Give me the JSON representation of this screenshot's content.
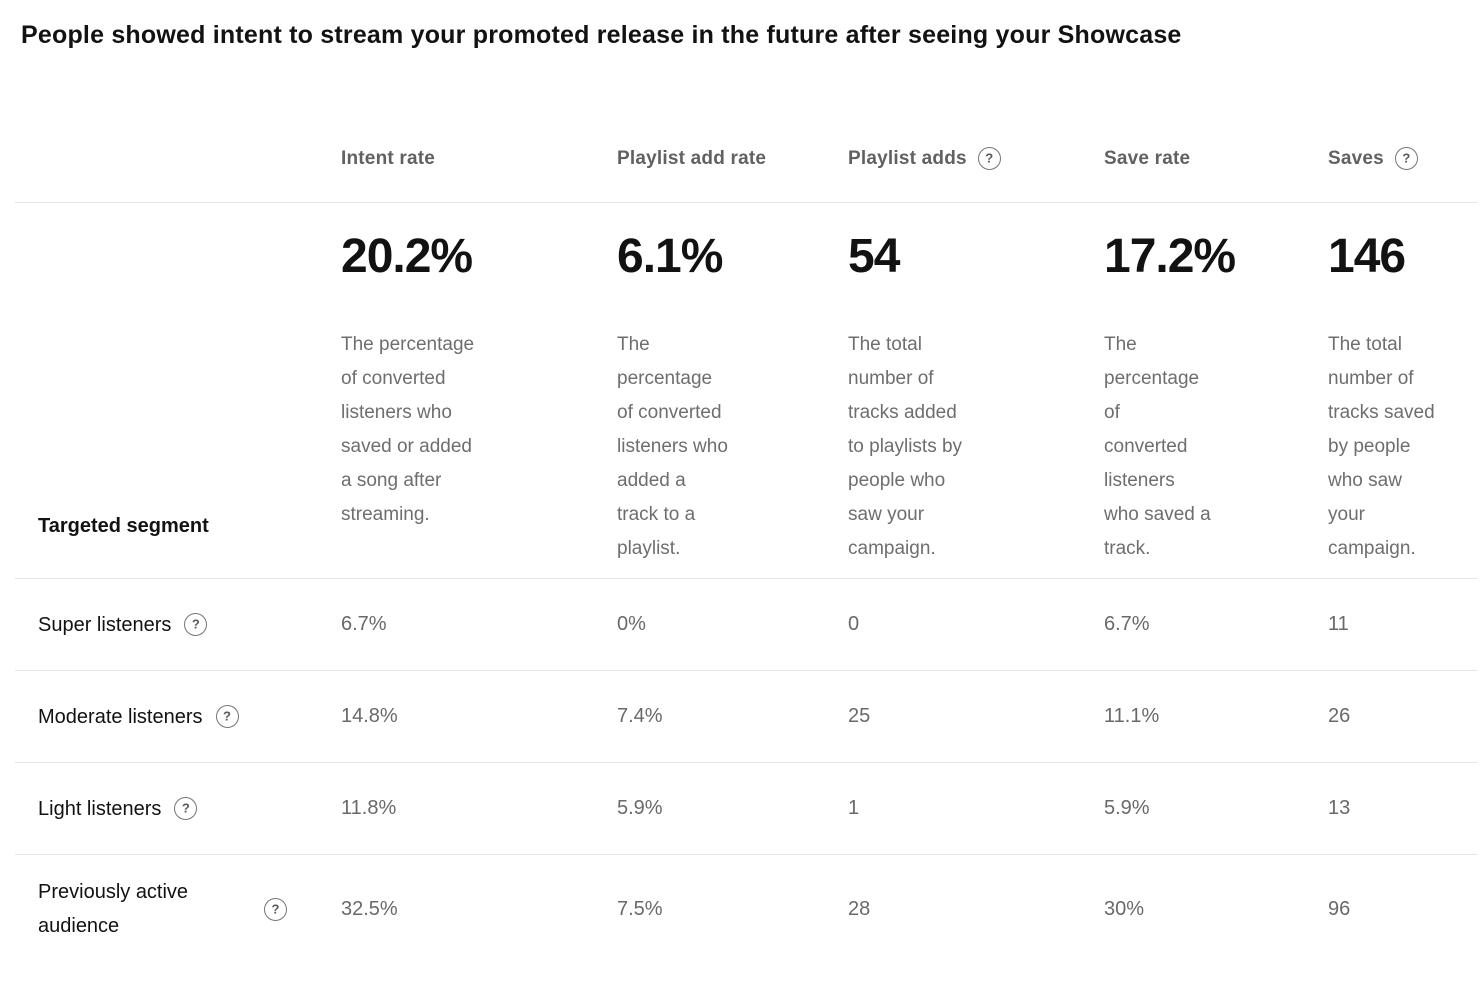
{
  "page_title": "People showed intent to stream your promoted release in the future after seeing your Showcase",
  "icons": {
    "help": "?"
  },
  "colors": {
    "text_primary": "#121212",
    "text_secondary": "#696969",
    "header_gray": "#616161",
    "divider": "#e4e4e4",
    "background": "#ffffff"
  },
  "table": {
    "segment_column_header": "Targeted segment",
    "columns": [
      {
        "label": "Intent rate",
        "has_help_icon": false,
        "summary_value": "20.2%",
        "description": "The percentage\nof converted\nlisteners who\nsaved or added\na song after\nstreaming."
      },
      {
        "label": "Playlist add rate",
        "has_help_icon": false,
        "summary_value": "6.1%",
        "description": "The\npercentage\nof converted\nlisteners who\nadded a\ntrack to a\nplaylist."
      },
      {
        "label": "Playlist adds",
        "has_help_icon": true,
        "summary_value": "54",
        "description": "The total\nnumber of\ntracks added\nto playlists by\npeople who\nsaw your\ncampaign."
      },
      {
        "label": "Save rate",
        "has_help_icon": false,
        "summary_value": "17.2%",
        "description": "The\npercentage\nof\nconverted\nlisteners\nwho saved a\ntrack."
      },
      {
        "label": "Saves",
        "has_help_icon": true,
        "summary_value": "146",
        "description": "The total\nnumber of\ntracks saved\nby people\nwho saw\nyour\ncampaign."
      }
    ],
    "rows": [
      {
        "segment": "Super listeners",
        "values": [
          "6.7%",
          "0%",
          "0",
          "6.7%",
          "11"
        ]
      },
      {
        "segment": "Moderate listeners",
        "values": [
          "14.8%",
          "7.4%",
          "25",
          "11.1%",
          "26"
        ]
      },
      {
        "segment": "Light listeners",
        "values": [
          "11.8%",
          "5.9%",
          "1",
          "5.9%",
          "13"
        ]
      },
      {
        "segment": "Previously active audience",
        "values": [
          "32.5%",
          "7.5%",
          "28",
          "30%",
          "96"
        ]
      }
    ]
  }
}
